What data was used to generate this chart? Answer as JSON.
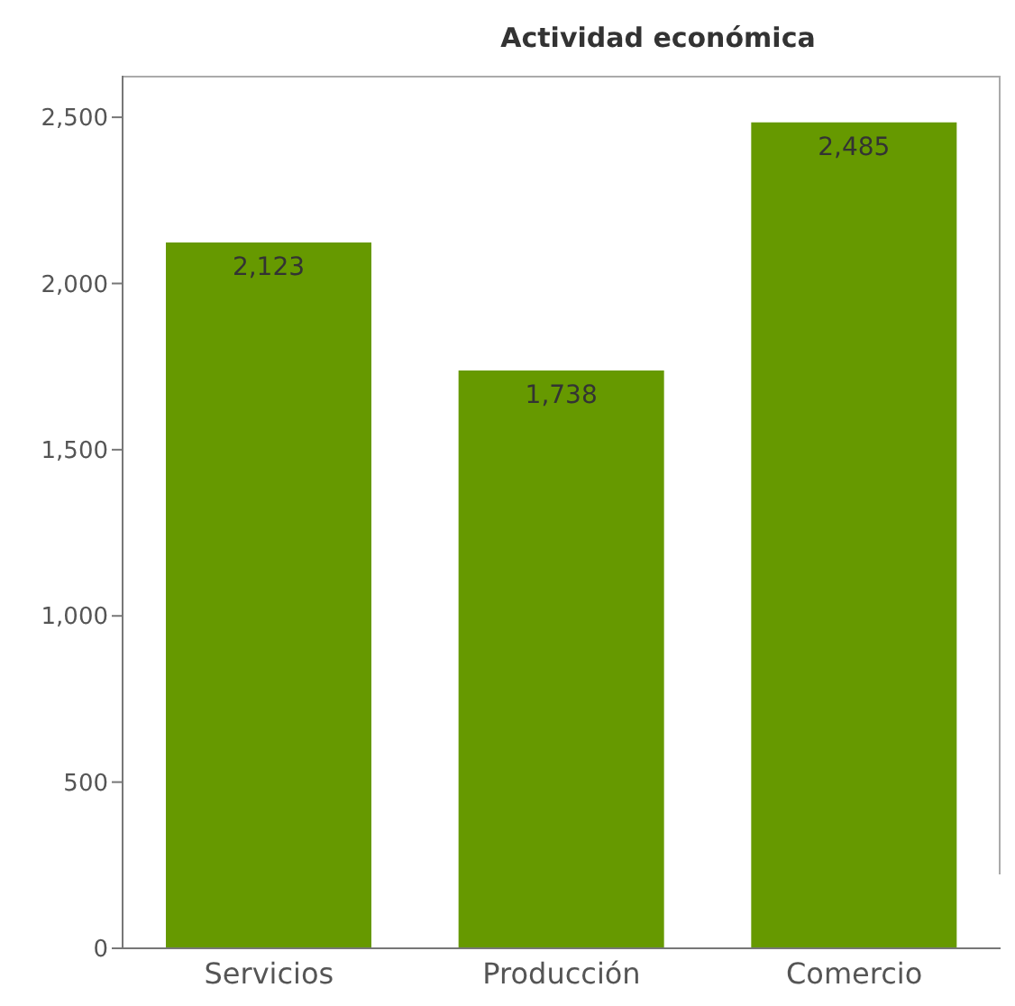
{
  "chart_data": {
    "type": "bar",
    "title": "Actividad económica",
    "categories": [
      "Servicios",
      "Producción",
      "Comercio"
    ],
    "values": [
      2123,
      1738,
      2485
    ],
    "color": "#669900",
    "ylim": [
      0,
      2625
    ],
    "yticks": [
      {
        "value": 0,
        "label": "0"
      },
      {
        "value": 500,
        "label": "500"
      },
      {
        "value": 1000,
        "label": "1,000"
      },
      {
        "value": 1500,
        "label": "1,500"
      },
      {
        "value": 2000,
        "label": "2,000"
      },
      {
        "value": 2500,
        "label": "2,500"
      }
    ],
    "value_labels": [
      "2,123",
      "1,738",
      "2,485"
    ],
    "grid": false
  }
}
